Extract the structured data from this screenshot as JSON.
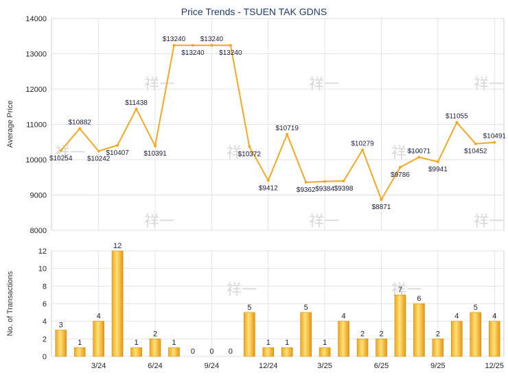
{
  "chart_data": [
    {
      "type": "line",
      "title": "Price Trends - TSUEN TAK GDNS",
      "ylabel": "Average Price",
      "ylim": [
        8000,
        14000
      ],
      "yticks": [
        8000,
        9000,
        10000,
        11000,
        12000,
        13000,
        14000
      ],
      "grid": true,
      "color": "#f5a81e",
      "labels": [
        "$10254",
        "$10882",
        "$10242",
        "$10407",
        "$11438",
        "$10391",
        "$13240",
        "$13240",
        "$13240",
        "$13240",
        "$10372",
        "$9412",
        "$10719",
        "$9362",
        "$9384",
        "$9398",
        "$10279",
        "$8871",
        "$9786",
        "$10071",
        "$9941",
        "$11055",
        "$10452",
        "$10491"
      ],
      "values": [
        10254,
        10882,
        10242,
        10407,
        11438,
        10391,
        13240,
        13240,
        13240,
        13240,
        10372,
        9412,
        10719,
        9362,
        9384,
        9398,
        10279,
        8871,
        9786,
        10071,
        9941,
        11055,
        10452,
        10491
      ]
    },
    {
      "type": "bar",
      "ylabel": "No. of Transactions",
      "ylim": [
        0,
        12
      ],
      "yticks": [
        0,
        2,
        4,
        6,
        8,
        10,
        12
      ],
      "grid": true,
      "color": "#f5a81e",
      "xtick_labels": [
        "3/24",
        "6/24",
        "9/24",
        "12/24",
        "3/25",
        "6/25",
        "9/25",
        "12/25"
      ],
      "xtick_positions": [
        2.5,
        5.5,
        8.5,
        11.5,
        14.5,
        17.5,
        20.5,
        23.5
      ],
      "values": [
        3,
        1,
        4,
        12,
        1,
        2,
        1,
        0,
        0,
        0,
        5,
        1,
        1,
        5,
        1,
        4,
        2,
        2,
        7,
        6,
        2,
        4,
        5,
        4
      ]
    }
  ],
  "watermark": "祥一"
}
